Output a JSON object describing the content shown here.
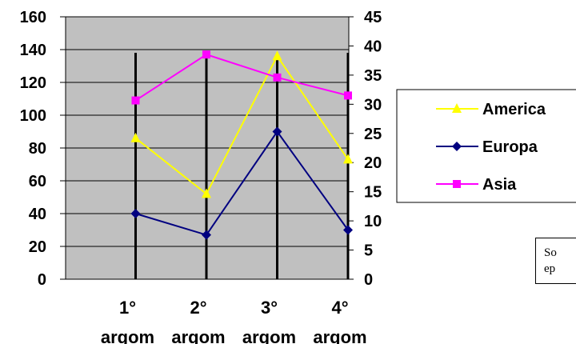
{
  "chart_data": {
    "type": "line",
    "categories": [
      [
        "1°",
        "argom"
      ],
      [
        "2°",
        "argom"
      ],
      [
        "3°",
        "argom"
      ],
      [
        "4°",
        "argom"
      ]
    ],
    "y_left": {
      "min": 0,
      "max": 160,
      "step": 20,
      "ticks": [
        "0",
        "20",
        "40",
        "60",
        "80",
        "100",
        "120",
        "140",
        "160"
      ]
    },
    "y_right": {
      "min": 0,
      "max": 45,
      "step": 5,
      "ticks": [
        "0",
        "5",
        "10",
        "15",
        "20",
        "25",
        "30",
        "35",
        "40",
        "45"
      ]
    },
    "series": [
      {
        "name": "America",
        "axis": "left",
        "color": "#ffff00",
        "marker": "triangle",
        "values": [
          86,
          52,
          136,
          73
        ]
      },
      {
        "name": "Europa",
        "axis": "left",
        "color": "#000080",
        "marker": "diamond",
        "values": [
          40,
          27,
          90,
          30
        ]
      },
      {
        "name": "Asia",
        "axis": "left",
        "color": "#ff00ff",
        "marker": "square",
        "values": [
          109,
          137,
          123,
          112
        ]
      }
    ],
    "plot_area_color": "#c0c0c0",
    "grid": true,
    "legend": "right",
    "title": "",
    "xlabel": "",
    "ylabel": ""
  },
  "note": {
    "lines": [
      "So",
      "ep"
    ]
  }
}
